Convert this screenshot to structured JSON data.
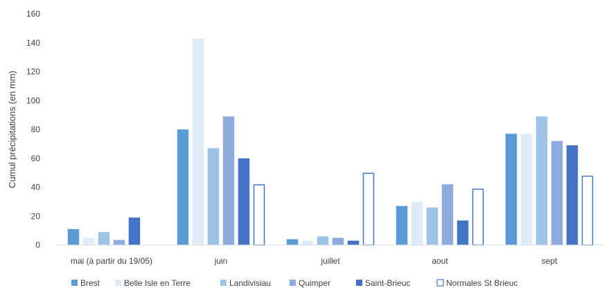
{
  "chart_data": {
    "type": "bar",
    "categories": [
      "mai (à partir du 19/05)",
      "juin",
      "juillet",
      "aout",
      "sept"
    ],
    "series": [
      {
        "name": "Brest",
        "values": [
          11,
          80,
          4,
          27,
          77
        ],
        "color": "#5B9BD5",
        "style": "fill"
      },
      {
        "name": "Belle Isle en Terre",
        "values": [
          5,
          143,
          3,
          30,
          77
        ],
        "color": "#DEEBF7",
        "style": "fill"
      },
      {
        "name": "Landivisiau",
        "values": [
          9,
          67,
          6,
          26,
          89
        ],
        "color": "#9DC3E6",
        "style": "fill"
      },
      {
        "name": "Quimper",
        "values": [
          3.5,
          89,
          5,
          42,
          72
        ],
        "color": "#8FAADC",
        "style": "fill"
      },
      {
        "name": "Saint-Brieuc",
        "values": [
          19,
          60,
          3,
          17,
          69
        ],
        "color": "#4472C4",
        "style": "fill"
      },
      {
        "name": "Normales St Brieuc",
        "values": [
          null,
          42,
          50,
          39,
          48
        ],
        "color": "#4472C4",
        "style": "outline"
      }
    ],
    "title": "",
    "xlabel": "",
    "ylabel": "Cumul précipitations (en mm)",
    "ylim": [
      0,
      160
    ],
    "yticks": [
      "0",
      "20",
      "40",
      "60",
      "80",
      "100",
      "120",
      "140",
      "160"
    ],
    "grid": false,
    "legend": "bottom"
  }
}
